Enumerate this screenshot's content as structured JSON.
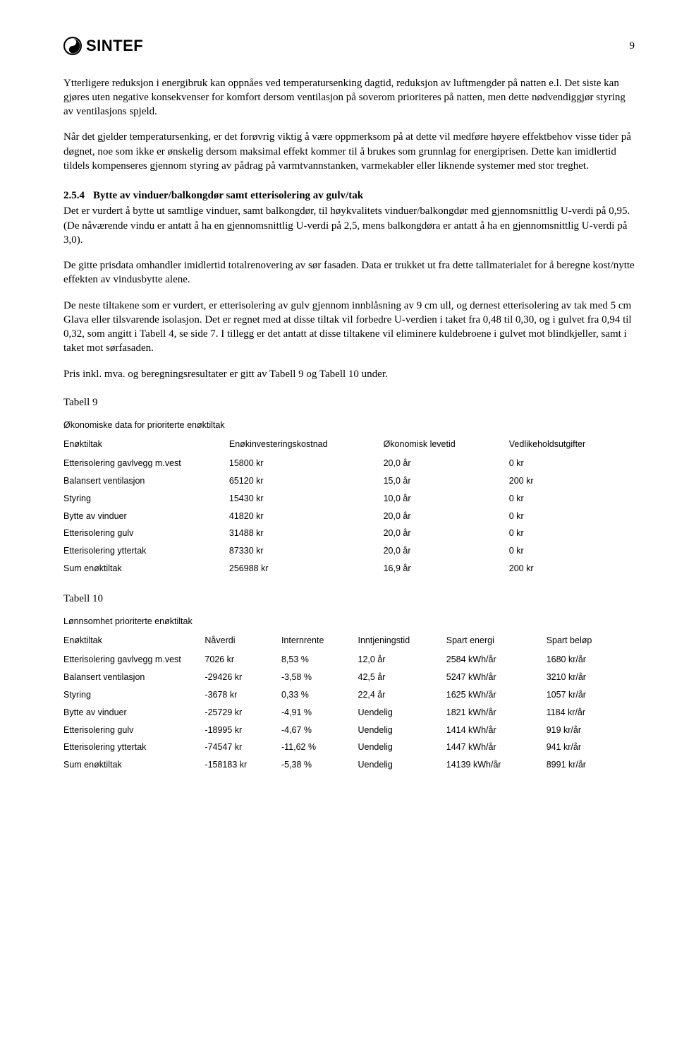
{
  "page_number": "9",
  "logo_text": "SINTEF",
  "paragraphs": {
    "p1": "Ytterligere reduksjon i energibruk kan oppnåes ved temperatursenking dagtid, reduksjon av luftmengder på natten e.l. Det siste kan gjøres uten negative konsekvenser for komfort dersom ventilasjon på soverom prioriteres på natten, men dette nødvendiggjør styring av ventilasjons spjeld.",
    "p2": "Når det gjelder temperatursenking, er det forøvrig viktig å være oppmerksom på at dette vil medføre høyere effektbehov visse tider på døgnet, noe som ikke er ønskelig dersom maksimal effekt kommer til å brukes som grunnlag for energiprisen. Dette kan imidlertid tildels kompenseres gjennom styring av pådrag på varmtvannstanken, varmekabler eller liknende systemer med stor treghet.",
    "p3": "Det er vurdert å bytte ut samtlige vinduer, samt balkongdør, til høykvalitets vinduer/balkongdør med gjennomsnittlig U-verdi på 0,95. (De nåværende vindu er antatt å ha en gjennomsnittlig U-verdi på 2,5, mens balkongdøra er antatt å ha en gjennomsnittlig U-verdi på 3,0).",
    "p4": "De gitte prisdata omhandler imidlertid totalrenovering av sør fasaden. Data er trukket ut fra dette tallmaterialet for å beregne kost/nytte effekten av vindusbytte alene.",
    "p5": "De neste tiltakene som er vurdert, er etterisolering av gulv gjennom innblåsning av 9 cm ull, og dernest etterisolering av tak med 5 cm Glava eller tilsvarende isolasjon. Det er regnet med at disse tiltak vil forbedre U-verdien i taket fra 0,48 til 0,30, og i gulvet fra 0,94 til 0,32, som angitt i Tabell 4, se side 7. I tillegg er det antatt at disse tiltakene vil eliminere kuldebroene i gulvet mot blindkjeller, samt i taket mot sørfasaden.",
    "p6": "Pris inkl. mva. og beregningsresultater er gitt av Tabell 9 og Tabell 10 under."
  },
  "section": {
    "number": "2.5.4",
    "title": "Bytte av vinduer/balkongdør samt etterisolering av gulv/tak"
  },
  "table9": {
    "caption": "Tabell 9",
    "title": "Økonomiske data for prioriterte enøktiltak",
    "columns": [
      "Enøktiltak",
      "Enøkinvesteringskostnad",
      "Økonomisk levetid",
      "Vedlikeholdsutgifter"
    ],
    "rows": [
      [
        "Etterisolering gavlvegg m.vest",
        "15800 kr",
        "20,0 år",
        "0 kr"
      ],
      [
        "Balansert ventilasjon",
        "65120 kr",
        "15,0 år",
        "200 kr"
      ],
      [
        "Styring",
        "15430 kr",
        "10,0 år",
        "0 kr"
      ],
      [
        "Bytte av vinduer",
        "41820 kr",
        "20,0 år",
        "0 kr"
      ],
      [
        "Etterisolering gulv",
        "31488 kr",
        "20,0 år",
        "0 kr"
      ],
      [
        "Etterisolering yttertak",
        "87330 kr",
        "20,0 år",
        "0 kr"
      ],
      [
        "Sum enøktiltak",
        "256988 kr",
        "16,9 år",
        "200 kr"
      ]
    ]
  },
  "table10": {
    "caption": "Tabell 10",
    "title": "Lønnsomhet prioriterte enøktiltak",
    "columns": [
      "Enøktiltak",
      "Nåverdi",
      "Internrente",
      "Inntjeningstid",
      "Spart energi",
      "Spart beløp"
    ],
    "rows": [
      [
        "Etterisolering gavlvegg m.vest",
        "7026 kr",
        "8,53 %",
        "12,0 år",
        "2584 kWh/år",
        "1680 kr/år"
      ],
      [
        "Balansert ventilasjon",
        "-29426 kr",
        "-3,58 %",
        "42,5 år",
        "5247 kWh/år",
        "3210 kr/år"
      ],
      [
        "Styring",
        "-3678 kr",
        "0,33 %",
        "22,4 år",
        "1625 kWh/år",
        "1057 kr/år"
      ],
      [
        "Bytte av vinduer",
        "-25729 kr",
        "-4,91 %",
        "Uendelig",
        "1821 kWh/år",
        "1184 kr/år"
      ],
      [
        "Etterisolering gulv",
        "-18995 kr",
        "-4,67 %",
        "Uendelig",
        "1414 kWh/år",
        "919 kr/år"
      ],
      [
        "Etterisolering yttertak",
        "-74547 kr",
        "-11,62 %",
        "Uendelig",
        "1447 kWh/år",
        "941 kr/år"
      ],
      [
        "Sum enøktiltak",
        "-158183 kr",
        "-5,38 %",
        "Uendelig",
        "14139 kWh/år",
        "8991 kr/år"
      ]
    ]
  }
}
